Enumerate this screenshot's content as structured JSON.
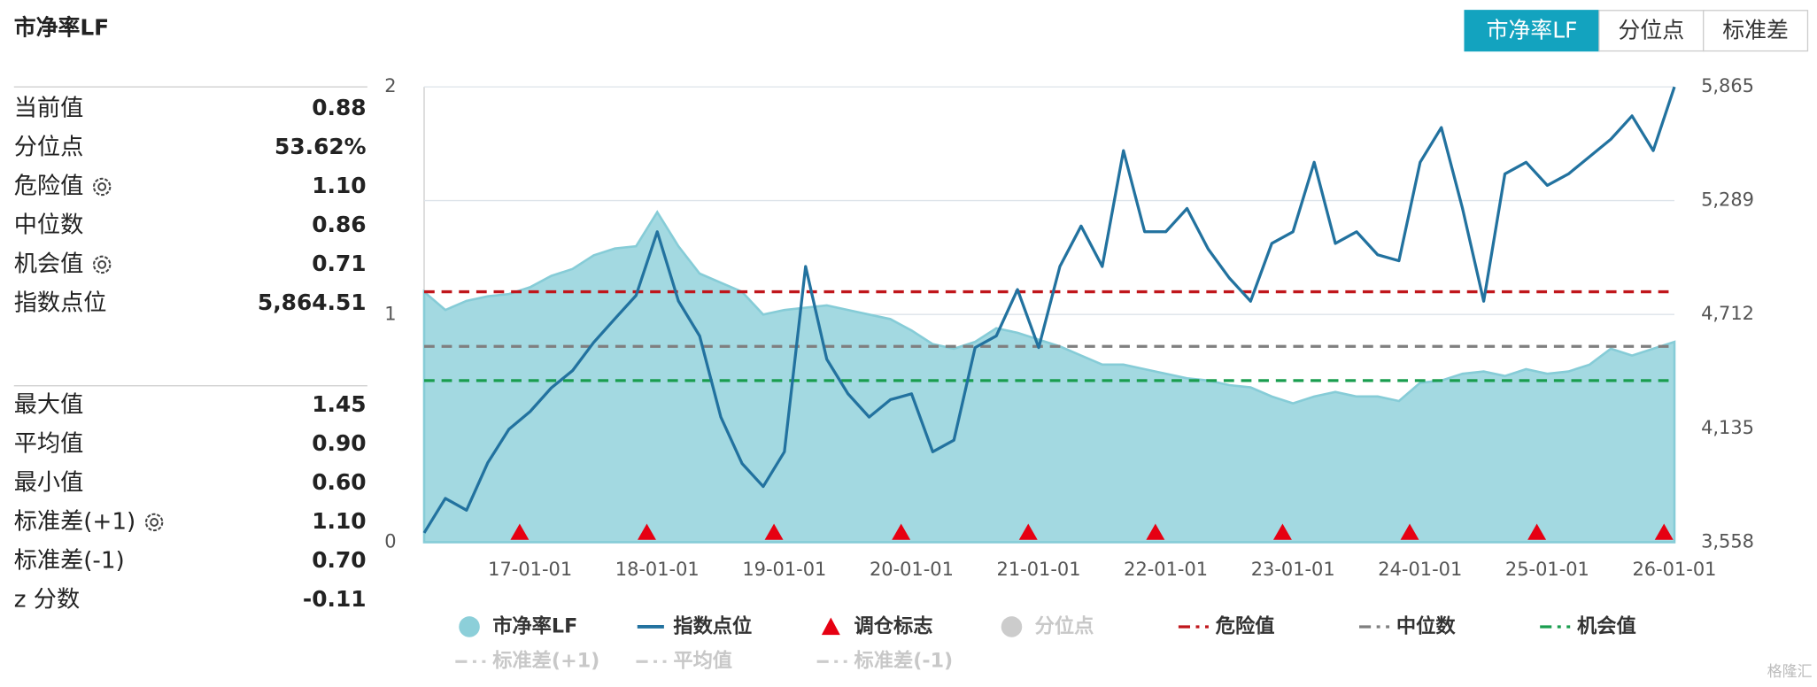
{
  "title": "市净率LF",
  "tabs": [
    {
      "label": "市净率LF",
      "active": true
    },
    {
      "label": "分位点",
      "active": false
    },
    {
      "label": "标准差",
      "active": false
    }
  ],
  "stats": [
    [
      {
        "label": "当前值",
        "value": "0.88"
      },
      {
        "label": "分位点",
        "value": "53.62%"
      },
      {
        "label": "危险值",
        "value": "1.10",
        "settings": true
      },
      {
        "label": "中位数",
        "value": "0.86"
      },
      {
        "label": "机会值",
        "value": "0.71",
        "settings": true
      },
      {
        "label": "指数点位",
        "value": "5,864.51"
      }
    ],
    [
      {
        "label": "最大值",
        "value": "1.45"
      },
      {
        "label": "平均值",
        "value": "0.90"
      },
      {
        "label": "最小值",
        "value": "0.60"
      },
      {
        "label": "标准差(+1)",
        "value": "1.10",
        "settings": true
      },
      {
        "label": "标准差(-1)",
        "value": "0.70"
      },
      {
        "label": "z 分数",
        "value": "-0.11"
      }
    ]
  ],
  "chart_data": {
    "type": "combo",
    "categories": [
      null,
      null,
      null,
      null,
      null,
      "17-01-01",
      null,
      null,
      null,
      null,
      null,
      "18-01-01",
      null,
      null,
      null,
      null,
      null,
      "19-01-01",
      null,
      null,
      null,
      null,
      null,
      "20-01-01",
      null,
      null,
      null,
      null,
      null,
      "21-01-01",
      null,
      null,
      null,
      null,
      null,
      "22-01-01",
      null,
      null,
      null,
      null,
      null,
      "23-01-01",
      null,
      null,
      null,
      null,
      null,
      "24-01-01",
      null,
      null,
      null,
      null,
      null,
      "25-01-01",
      null,
      null,
      null,
      null,
      null,
      "26-01-01"
    ],
    "series": [
      {
        "name": "市净率LF",
        "type": "area",
        "color": "#a3d9e1",
        "axis": "y",
        "values": [
          1.1,
          1.02,
          1.06,
          1.08,
          1.09,
          1.12,
          1.17,
          1.2,
          1.26,
          1.29,
          1.3,
          1.45,
          1.3,
          1.18,
          1.14,
          1.1,
          1.0,
          1.02,
          1.03,
          1.04,
          1.02,
          1.0,
          0.98,
          0.93,
          0.87,
          0.85,
          0.88,
          0.94,
          0.92,
          0.89,
          0.86,
          0.82,
          0.78,
          0.78,
          0.76,
          0.74,
          0.72,
          0.71,
          0.69,
          0.68,
          0.64,
          0.61,
          0.64,
          0.66,
          0.64,
          0.64,
          0.62,
          0.7,
          0.71,
          0.74,
          0.75,
          0.73,
          0.76,
          0.74,
          0.75,
          0.78,
          0.85,
          0.82,
          0.85,
          0.88
        ]
      },
      {
        "name": "指数点位",
        "type": "line",
        "color": "#22729f",
        "axis": "y2",
        "values": [
          3605,
          3780,
          3720,
          3960,
          4130,
          4220,
          4340,
          4427,
          4570,
          4690,
          4808,
          5131,
          4780,
          4603,
          4192,
          3957,
          3840,
          4016,
          4955,
          4485,
          4310,
          4192,
          4280,
          4310,
          4016,
          4075,
          4544,
          4603,
          4838,
          4544,
          4955,
          5160,
          4955,
          5542,
          5131,
          5131,
          5249,
          5043,
          4896,
          4779,
          5072,
          5131,
          5483,
          5072,
          5131,
          5014,
          4984,
          5483,
          5659,
          5249,
          4779,
          5424,
          5483,
          5366,
          5424,
          5512,
          5600,
          5718,
          5542,
          5865
        ]
      },
      {
        "name": "调仓标志",
        "type": "marker",
        "color": "#e60012",
        "axis": "y",
        "values": [
          null,
          null,
          null,
          null,
          null,
          0,
          null,
          null,
          null,
          null,
          null,
          0,
          null,
          null,
          null,
          null,
          null,
          0,
          null,
          null,
          null,
          null,
          null,
          0,
          null,
          null,
          null,
          null,
          null,
          0,
          null,
          null,
          null,
          null,
          null,
          0,
          null,
          null,
          null,
          null,
          null,
          0,
          null,
          null,
          null,
          null,
          null,
          0,
          null,
          null,
          null,
          null,
          null,
          0,
          null,
          null,
          null,
          null,
          null,
          0
        ]
      }
    ],
    "hidden_series": [
      {
        "name": "分位点",
        "color": "#cccccc"
      }
    ],
    "reference_lines": [
      {
        "name": "危险值",
        "value": 1.1,
        "color": "#c0161b",
        "visible": true
      },
      {
        "name": "中位数",
        "value": 0.86,
        "color": "#7f7f7f",
        "visible": true
      },
      {
        "name": "机会值",
        "value": 0.71,
        "color": "#1a9d4f",
        "visible": true
      },
      {
        "name": "标准差(+1)",
        "value": 1.1,
        "color": "#cccccc",
        "visible": false
      },
      {
        "name": "平均值",
        "value": 0.9,
        "color": "#cccccc",
        "visible": false
      },
      {
        "name": "标准差(-1)",
        "value": 0.7,
        "color": "#cccccc",
        "visible": false
      }
    ],
    "ylim": [
      0,
      2
    ],
    "yticks": [
      0,
      1,
      2
    ],
    "y2lim": [
      3558,
      5865
    ],
    "y2ticks": [
      {
        "value": 3558,
        "label": "3,558"
      },
      {
        "value": 4135,
        "label": "4,135"
      },
      {
        "value": 4712,
        "label": "4,712"
      },
      {
        "value": 5289,
        "label": "5,289"
      },
      {
        "value": 5865,
        "label": "5,865"
      }
    ],
    "grid": true
  },
  "watermark": "格隆汇"
}
